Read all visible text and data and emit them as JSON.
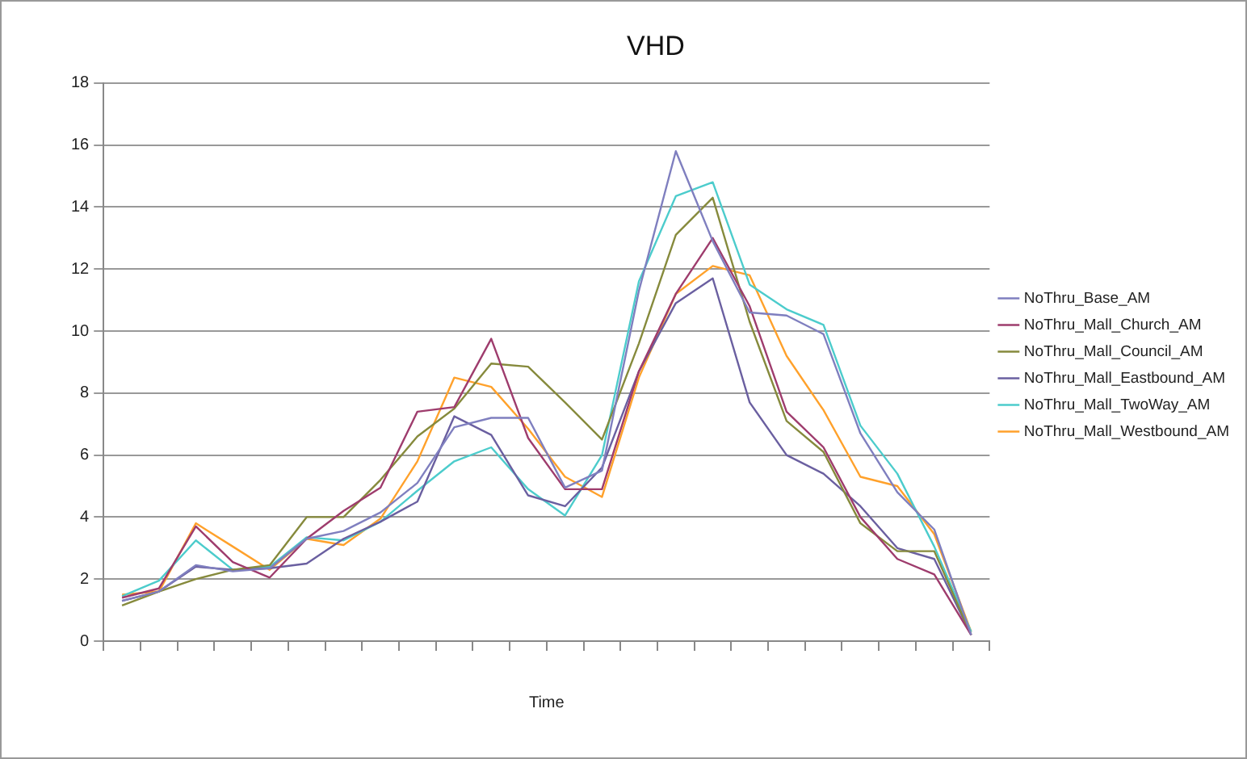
{
  "chart_data": {
    "type": "line",
    "title": "VHD",
    "xlabel": "Time",
    "categories": [
      null,
      null,
      null,
      null,
      null,
      null,
      null,
      null,
      null,
      null,
      null,
      null,
      null,
      null,
      null,
      null,
      null,
      null,
      null,
      null,
      null,
      null,
      null,
      null
    ],
    "series": [
      {
        "name": "NoThru_Base_AM",
        "color": "#7f7fbf",
        "values": [
          1.3,
          1.6,
          2.45,
          2.25,
          2.35,
          3.3,
          3.55,
          4.15,
          5.1,
          6.9,
          7.2,
          7.2,
          4.95,
          5.5,
          11.3,
          15.8,
          12.9,
          10.6,
          10.5,
          9.9,
          6.7,
          4.8,
          3.6,
          0.2
        ]
      },
      {
        "name": "NoThru_Mall_Church_AM",
        "color": "#9e3c6d",
        "values": [
          1.4,
          1.7,
          3.7,
          2.55,
          2.05,
          3.3,
          4.2,
          4.95,
          7.4,
          7.55,
          9.75,
          6.55,
          4.9,
          4.9,
          8.7,
          11.2,
          13.0,
          10.8,
          7.4,
          6.25,
          4.0,
          2.65,
          2.15,
          0.2
        ]
      },
      {
        "name": "NoThru_Mall_Council_AM",
        "color": "#868a3c",
        "values": [
          1.15,
          1.6,
          2.0,
          2.3,
          2.45,
          4.0,
          4.0,
          5.2,
          6.6,
          7.5,
          8.95,
          8.85,
          7.7,
          6.5,
          9.6,
          13.1,
          14.3,
          10.3,
          7.1,
          6.1,
          3.8,
          2.9,
          2.9,
          0.2
        ]
      },
      {
        "name": "NoThru_Mall_Eastbound_AM",
        "color": "#6a5fa0",
        "values": [
          1.3,
          1.6,
          2.4,
          2.3,
          2.35,
          2.5,
          3.3,
          3.85,
          4.5,
          7.25,
          6.65,
          4.7,
          4.35,
          5.6,
          8.7,
          10.9,
          11.7,
          7.7,
          6.0,
          5.4,
          4.35,
          3.0,
          2.65,
          0.2
        ]
      },
      {
        "name": "NoThru_Mall_TwoWay_AM",
        "color": "#4ccccc",
        "values": [
          1.45,
          1.95,
          3.25,
          2.3,
          2.4,
          3.35,
          3.25,
          3.85,
          4.85,
          5.8,
          6.25,
          4.9,
          4.05,
          6.0,
          11.6,
          14.35,
          14.8,
          11.5,
          10.7,
          10.2,
          6.95,
          5.4,
          3.05,
          0.3
        ]
      },
      {
        "name": "NoThru_Mall_Westbound_AM",
        "color": "#ffa12b",
        "values": [
          1.5,
          1.6,
          3.8,
          3.05,
          2.3,
          3.3,
          3.1,
          3.95,
          5.8,
          8.5,
          8.2,
          6.85,
          5.3,
          4.65,
          8.5,
          11.2,
          12.1,
          11.8,
          9.2,
          7.45,
          5.3,
          5.0,
          3.45,
          0.3
        ]
      }
    ],
    "ylim": [
      0,
      18
    ],
    "yticks": [
      0,
      2,
      4,
      6,
      8,
      10,
      12,
      14,
      16,
      18
    ],
    "grid": "y",
    "legend": "right",
    "tick_labels": "y",
    "marker": "none",
    "line_style": "solid"
  }
}
